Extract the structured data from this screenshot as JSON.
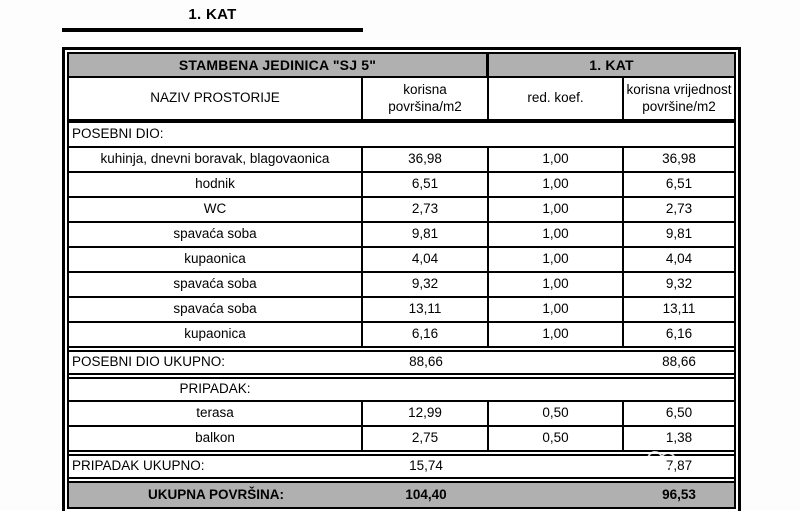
{
  "title": "1. KAT",
  "table": {
    "header_top": {
      "unit": "STAMBENA JEDINICA \"SJ 5\"",
      "floor": "1. KAT"
    },
    "columns": {
      "name": "NAZIV PROSTORIJE",
      "area_line1": "korisna",
      "area_line2": "površina/m2",
      "koef": "red. koef.",
      "value_line1": "korisna vrijednost",
      "value_line2": "površine/m2"
    },
    "rows": [
      {
        "type": "section",
        "align": "left",
        "label": "POSEBNI DIO:"
      },
      {
        "type": "data",
        "name": "kuhinja, dnevni boravak, blagovaonica",
        "area": "36,98",
        "koef": "1,00",
        "value": "36,98"
      },
      {
        "type": "data",
        "name": "hodnik",
        "area": "6,51",
        "koef": "1,00",
        "value": "6,51"
      },
      {
        "type": "data",
        "name": "WC",
        "area": "2,73",
        "koef": "1,00",
        "value": "2,73"
      },
      {
        "type": "data",
        "name": "spavaća soba",
        "area": "9,81",
        "koef": "1,00",
        "value": "9,81"
      },
      {
        "type": "data",
        "name": "kupaonica",
        "area": "4,04",
        "koef": "1,00",
        "value": "4,04"
      },
      {
        "type": "data",
        "name": "spavaća soba",
        "area": "9,32",
        "koef": "1,00",
        "value": "9,32"
      },
      {
        "type": "data",
        "name": "spavaća soba",
        "area": "13,11",
        "koef": "1,00",
        "value": "13,11"
      },
      {
        "type": "data",
        "name": "kupaonica",
        "area": "6,16",
        "koef": "1,00",
        "value": "6,16"
      },
      {
        "type": "total",
        "label": "POSEBNI DIO UKUPNO:",
        "area": "88,66",
        "koef": "",
        "value": "88,66"
      },
      {
        "type": "section",
        "align": "col1-center",
        "label": "PRIPADAK:"
      },
      {
        "type": "data",
        "name": "terasa",
        "area": "12,99",
        "koef": "0,50",
        "value": "6,50"
      },
      {
        "type": "data",
        "name": "balkon",
        "area": "2,75",
        "koef": "0,50",
        "value": "1,38"
      },
      {
        "type": "total",
        "label": "PRIPADAK UKUPNO:",
        "area": "15,74",
        "koef": "",
        "value": "7,87"
      },
      {
        "type": "grand",
        "label": "UKUPNA POVRŠINA:",
        "area": "104,40",
        "koef": "",
        "value": "96,53"
      }
    ]
  },
  "colors": {
    "header_gray": "#b0b0b0",
    "line_black": "#000000",
    "paper_white": "#ffffff"
  },
  "watermark": {
    "shape": "two overlapping faint circles"
  }
}
